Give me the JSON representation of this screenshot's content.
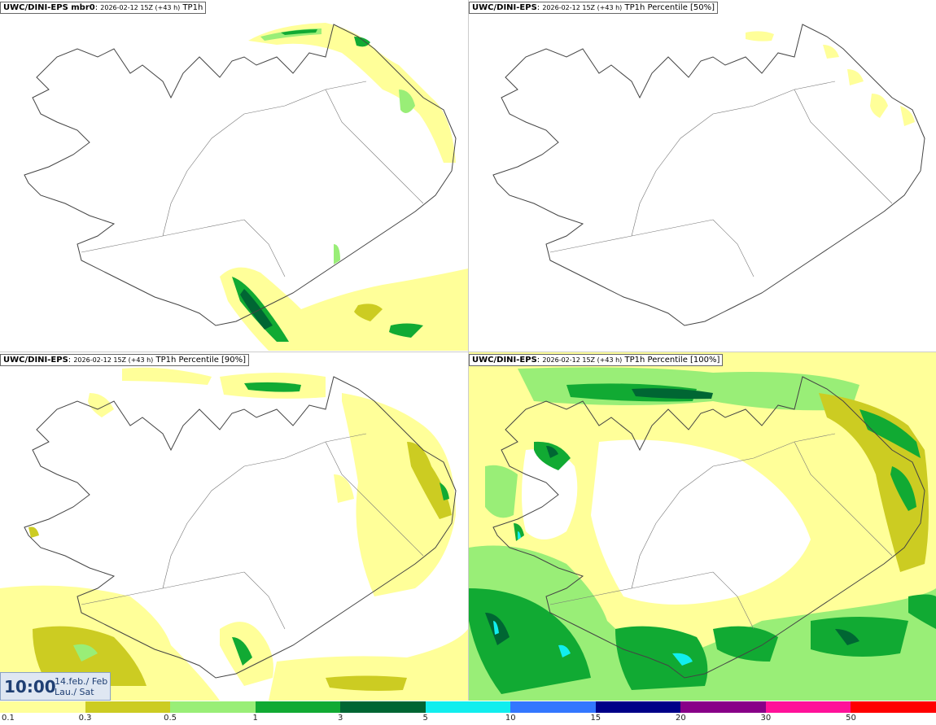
{
  "panels": [
    {
      "model": "UWC/DINI-EPS mbr0",
      "run": "2026-02-12 15Z (+43 h)",
      "field": "TP1h"
    },
    {
      "model": "UWC/DINI-EPS",
      "run": "2026-02-12 15Z (+43 h)",
      "field": "TP1h Percentile [50%]"
    },
    {
      "model": "UWC/DINI-EPS",
      "run": "2026-02-12 15Z (+43 h)",
      "field": "TP1h Percentile [90%]"
    },
    {
      "model": "UWC/DINI-EPS",
      "run": "2026-02-12 15Z (+43 h)",
      "field": "TP1h Percentile [100%]"
    }
  ],
  "valid_time": {
    "time": "10:00",
    "date_line1": "14.feb./ Feb",
    "date_line2": "Lau./ Sat"
  },
  "legend": {
    "labels": [
      "0.1",
      "0.3",
      "0.5",
      "1",
      "3",
      "5",
      "10",
      "15",
      "20",
      "30",
      "50"
    ],
    "colors": [
      "#ffff99",
      "#cccc22",
      "#99ee77",
      "#11aa33",
      "#006633",
      "#11eeee",
      "#3377ff",
      "#000088",
      "#880088",
      "#ff1199",
      "#ff0000"
    ]
  }
}
